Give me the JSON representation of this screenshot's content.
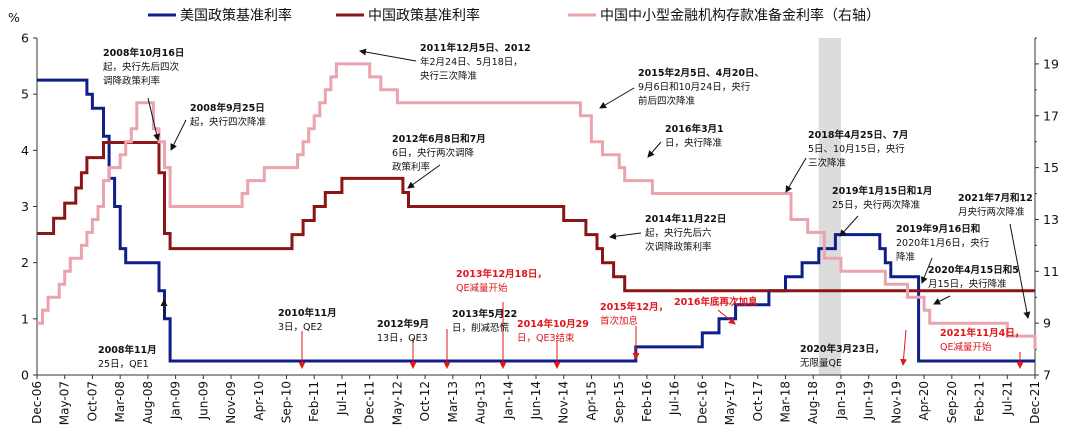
{
  "chart_data": {
    "type": "line",
    "ylabel_left": "%",
    "ylim_left": [
      0,
      6
    ],
    "ylim_right": [
      7,
      20
    ],
    "left_ticks": [
      "0",
      "1",
      "2",
      "3",
      "4",
      "5",
      "6"
    ],
    "right_ticks": [
      "7",
      "9",
      "11",
      "13",
      "15",
      "17",
      "19"
    ],
    "x_tick_labels": [
      "Dec-06",
      "May-07",
      "Oct-07",
      "Mar-08",
      "Aug-08",
      "Jan-09",
      "Jun-09",
      "Nov-09",
      "Apr-10",
      "Sep-10",
      "Feb-11",
      "Jul-11",
      "Dec-11",
      "May-12",
      "Oct-12",
      "Mar-13",
      "Aug-13",
      "Jan-14",
      "Jun-14",
      "Nov-14",
      "Apr-15",
      "Sep-15",
      "Feb-16",
      "Jul-16",
      "Dec-16",
      "May-17",
      "Oct-17",
      "Mar-18",
      "Aug-18",
      "Jan-19",
      "Jun-19",
      "Nov-19",
      "Apr-20",
      "Sep-20",
      "Feb-21",
      "Jul-21",
      "Dec-21"
    ],
    "shaded_range": [
      "Sep-18",
      "Jan-19"
    ],
    "series": [
      {
        "name": "美国政策基准利率",
        "axis": "left",
        "color": "#0f1f8a",
        "shape": "step",
        "points": [
          [
            "Dec-06",
            5.25
          ],
          [
            "Sep-07",
            5.0
          ],
          [
            "Oct-07",
            4.75
          ],
          [
            "Dec-07",
            4.25
          ],
          [
            "Jan-08",
            3.5
          ],
          [
            "Feb-08",
            3.0
          ],
          [
            "Mar-08",
            2.25
          ],
          [
            "Apr-08",
            2.0
          ],
          [
            "Oct-08",
            1.5
          ],
          [
            "Nov-08",
            1.0
          ],
          [
            "Dec-08",
            0.25
          ],
          [
            "Dec-15",
            0.25
          ],
          [
            "Dec-15",
            0.5
          ],
          [
            "Dec-16",
            0.75
          ],
          [
            "Mar-17",
            1.0
          ],
          [
            "Jun-17",
            1.25
          ],
          [
            "Dec-17",
            1.5
          ],
          [
            "Mar-18",
            1.75
          ],
          [
            "Jun-18",
            2.0
          ],
          [
            "Sep-18",
            2.25
          ],
          [
            "Dec-18",
            2.5
          ],
          [
            "Aug-19",
            2.25
          ],
          [
            "Sep-19",
            2.0
          ],
          [
            "Oct-19",
            1.75
          ],
          [
            "Mar-20",
            1.0
          ],
          [
            "Mar-20",
            0.25
          ],
          [
            "Dec-21",
            0.25
          ]
        ]
      },
      {
        "name": "中国政策基准利率",
        "axis": "left",
        "color": "#8b1414",
        "shape": "step",
        "points": [
          [
            "Dec-06",
            2.52
          ],
          [
            "Mar-07",
            2.79
          ],
          [
            "May-07",
            3.06
          ],
          [
            "Jul-07",
            3.33
          ],
          [
            "Aug-07",
            3.6
          ],
          [
            "Sep-07",
            3.87
          ],
          [
            "Dec-07",
            4.14
          ],
          [
            "Oct-08",
            3.87
          ],
          [
            "Oct-08",
            3.6
          ],
          [
            "Nov-08",
            2.52
          ],
          [
            "Dec-08",
            2.25
          ],
          [
            "Oct-10",
            2.5
          ],
          [
            "Dec-10",
            2.75
          ],
          [
            "Feb-11",
            3.0
          ],
          [
            "Apr-11",
            3.25
          ],
          [
            "Jul-11",
            3.5
          ],
          [
            "Jun-12",
            3.25
          ],
          [
            "Jul-12",
            3.0
          ],
          [
            "Nov-14",
            2.75
          ],
          [
            "Mar-15",
            2.5
          ],
          [
            "May-15",
            2.25
          ],
          [
            "Jun-15",
            2.0
          ],
          [
            "Aug-15",
            1.75
          ],
          [
            "Oct-15",
            1.5
          ],
          [
            "Dec-21",
            1.5
          ]
        ]
      },
      {
        "name": "中国中小型金融机构存款准备金利率（右轴）",
        "axis": "right",
        "color": "#eba3ad",
        "shape": "step",
        "points": [
          [
            "Dec-06",
            9.0
          ],
          [
            "Jan-07",
            9.5
          ],
          [
            "Feb-07",
            10.0
          ],
          [
            "Apr-07",
            10.5
          ],
          [
            "May-07",
            11.0
          ],
          [
            "Jun-07",
            11.5
          ],
          [
            "Aug-07",
            12.0
          ],
          [
            "Sep-07",
            12.5
          ],
          [
            "Oct-07",
            13.0
          ],
          [
            "Nov-07",
            13.5
          ],
          [
            "Dec-07",
            14.5
          ],
          [
            "Jan-08",
            15.0
          ],
          [
            "Mar-08",
            15.5
          ],
          [
            "Apr-08",
            16.0
          ],
          [
            "May-08",
            16.5
          ],
          [
            "Jun-08",
            17.5
          ],
          [
            "Sep-08",
            17.5
          ],
          [
            "Sep-08",
            16.5
          ],
          [
            "Oct-08",
            16.0
          ],
          [
            "Nov-08",
            15.0
          ],
          [
            "Dec-08",
            13.5
          ],
          [
            "Jan-10",
            14.0
          ],
          [
            "Feb-10",
            14.5
          ],
          [
            "May-10",
            15.0
          ],
          [
            "Nov-10",
            15.5
          ],
          [
            "Dec-10",
            16.0
          ],
          [
            "Jan-11",
            16.5
          ],
          [
            "Feb-11",
            17.0
          ],
          [
            "Mar-11",
            17.5
          ],
          [
            "Apr-11",
            18.0
          ],
          [
            "May-11",
            18.5
          ],
          [
            "Jun-11",
            19.0
          ],
          [
            "Dec-11",
            18.5
          ],
          [
            "Feb-12",
            18.0
          ],
          [
            "May-12",
            17.5
          ],
          [
            "Feb-15",
            17.0
          ],
          [
            "Apr-15",
            16.0
          ],
          [
            "Jun-15",
            15.5
          ],
          [
            "Sep-15",
            15.0
          ],
          [
            "Oct-15",
            14.5
          ],
          [
            "Mar-16",
            14.0
          ],
          [
            "Apr-18",
            13.0
          ],
          [
            "Jul-18",
            12.5
          ],
          [
            "Oct-18",
            11.5
          ],
          [
            "Jan-19",
            11.0
          ],
          [
            "Sep-19",
            10.5
          ],
          [
            "Jan-20",
            10.0
          ],
          [
            "Apr-20",
            9.5
          ],
          [
            "May-20",
            9.0
          ],
          [
            "Jul-21",
            8.5
          ],
          [
            "Dec-21",
            8.0
          ]
        ]
      }
    ],
    "annotations": [
      {
        "lines": [
          "2008年10月16日",
          "起，央行先后四次",
          "调降政策利率"
        ],
        "color": "black",
        "bold_prefix": "2008年10月16日|起"
      },
      {
        "lines": [
          "2008年9月25日",
          "起，央行四次降准"
        ],
        "color": "black"
      },
      {
        "lines": [
          "2011年12月5日、2012",
          "年2月24日、5月18日，",
          "央行三次降准"
        ],
        "color": "black"
      },
      {
        "lines": [
          "2015年2月5日、4月20日、",
          "9月6日和10月24日，央行",
          "前后四次降准"
        ],
        "color": "black"
      },
      {
        "lines": [
          "2016年3月1",
          "日，央行降准"
        ],
        "color": "black"
      },
      {
        "lines": [
          "2012年6月8日和7月",
          "6日，央行两次调降",
          "政策利率"
        ],
        "color": "black"
      },
      {
        "lines": [
          "2014年11月22日",
          "起，央行先后六",
          "次调降政策利率"
        ],
        "color": "black"
      },
      {
        "lines": [
          "2018年4月25日、7月",
          "5日、10月15日，央行",
          "三次降准"
        ],
        "color": "black"
      },
      {
        "lines": [
          "2019年1月15日和1月",
          "25日，央行两次降准"
        ],
        "color": "black"
      },
      {
        "lines": [
          "2021年7月和12",
          "月央行两次降准"
        ],
        "color": "black"
      },
      {
        "lines": [
          "2019年9月16日和",
          "2020年1月6日，央行",
          "降准"
        ],
        "color": "black"
      },
      {
        "lines": [
          "2020年4月15日和5",
          "月15日，央行降准"
        ],
        "color": "black"
      },
      {
        "lines": [
          "2013年12月18日，",
          "QE减量开始"
        ],
        "color": "red"
      },
      {
        "lines": [
          "2016年底再次加息"
        ],
        "color": "red"
      },
      {
        "lines": [
          "2015年12月，",
          "首次加息"
        ],
        "color": "red"
      },
      {
        "lines": [
          "2014年10月29",
          "日，QE3结束"
        ],
        "color": "red"
      },
      {
        "lines": [
          "2010年11月",
          "3日，QE2"
        ],
        "color": "black"
      },
      {
        "lines": [
          "2012年9月",
          "13日，QE3"
        ],
        "color": "black"
      },
      {
        "lines": [
          "2013年5月22",
          "日，削减恐慌"
        ],
        "color": "black"
      },
      {
        "lines": [
          "2008年11月",
          "25日，QE1"
        ],
        "color": "black"
      },
      {
        "lines": [
          "2020年3月23日，",
          "无限量QE"
        ],
        "color": "black"
      },
      {
        "lines": [
          "2021年11月4日，",
          "QE减量开始"
        ],
        "color": "red"
      }
    ]
  }
}
